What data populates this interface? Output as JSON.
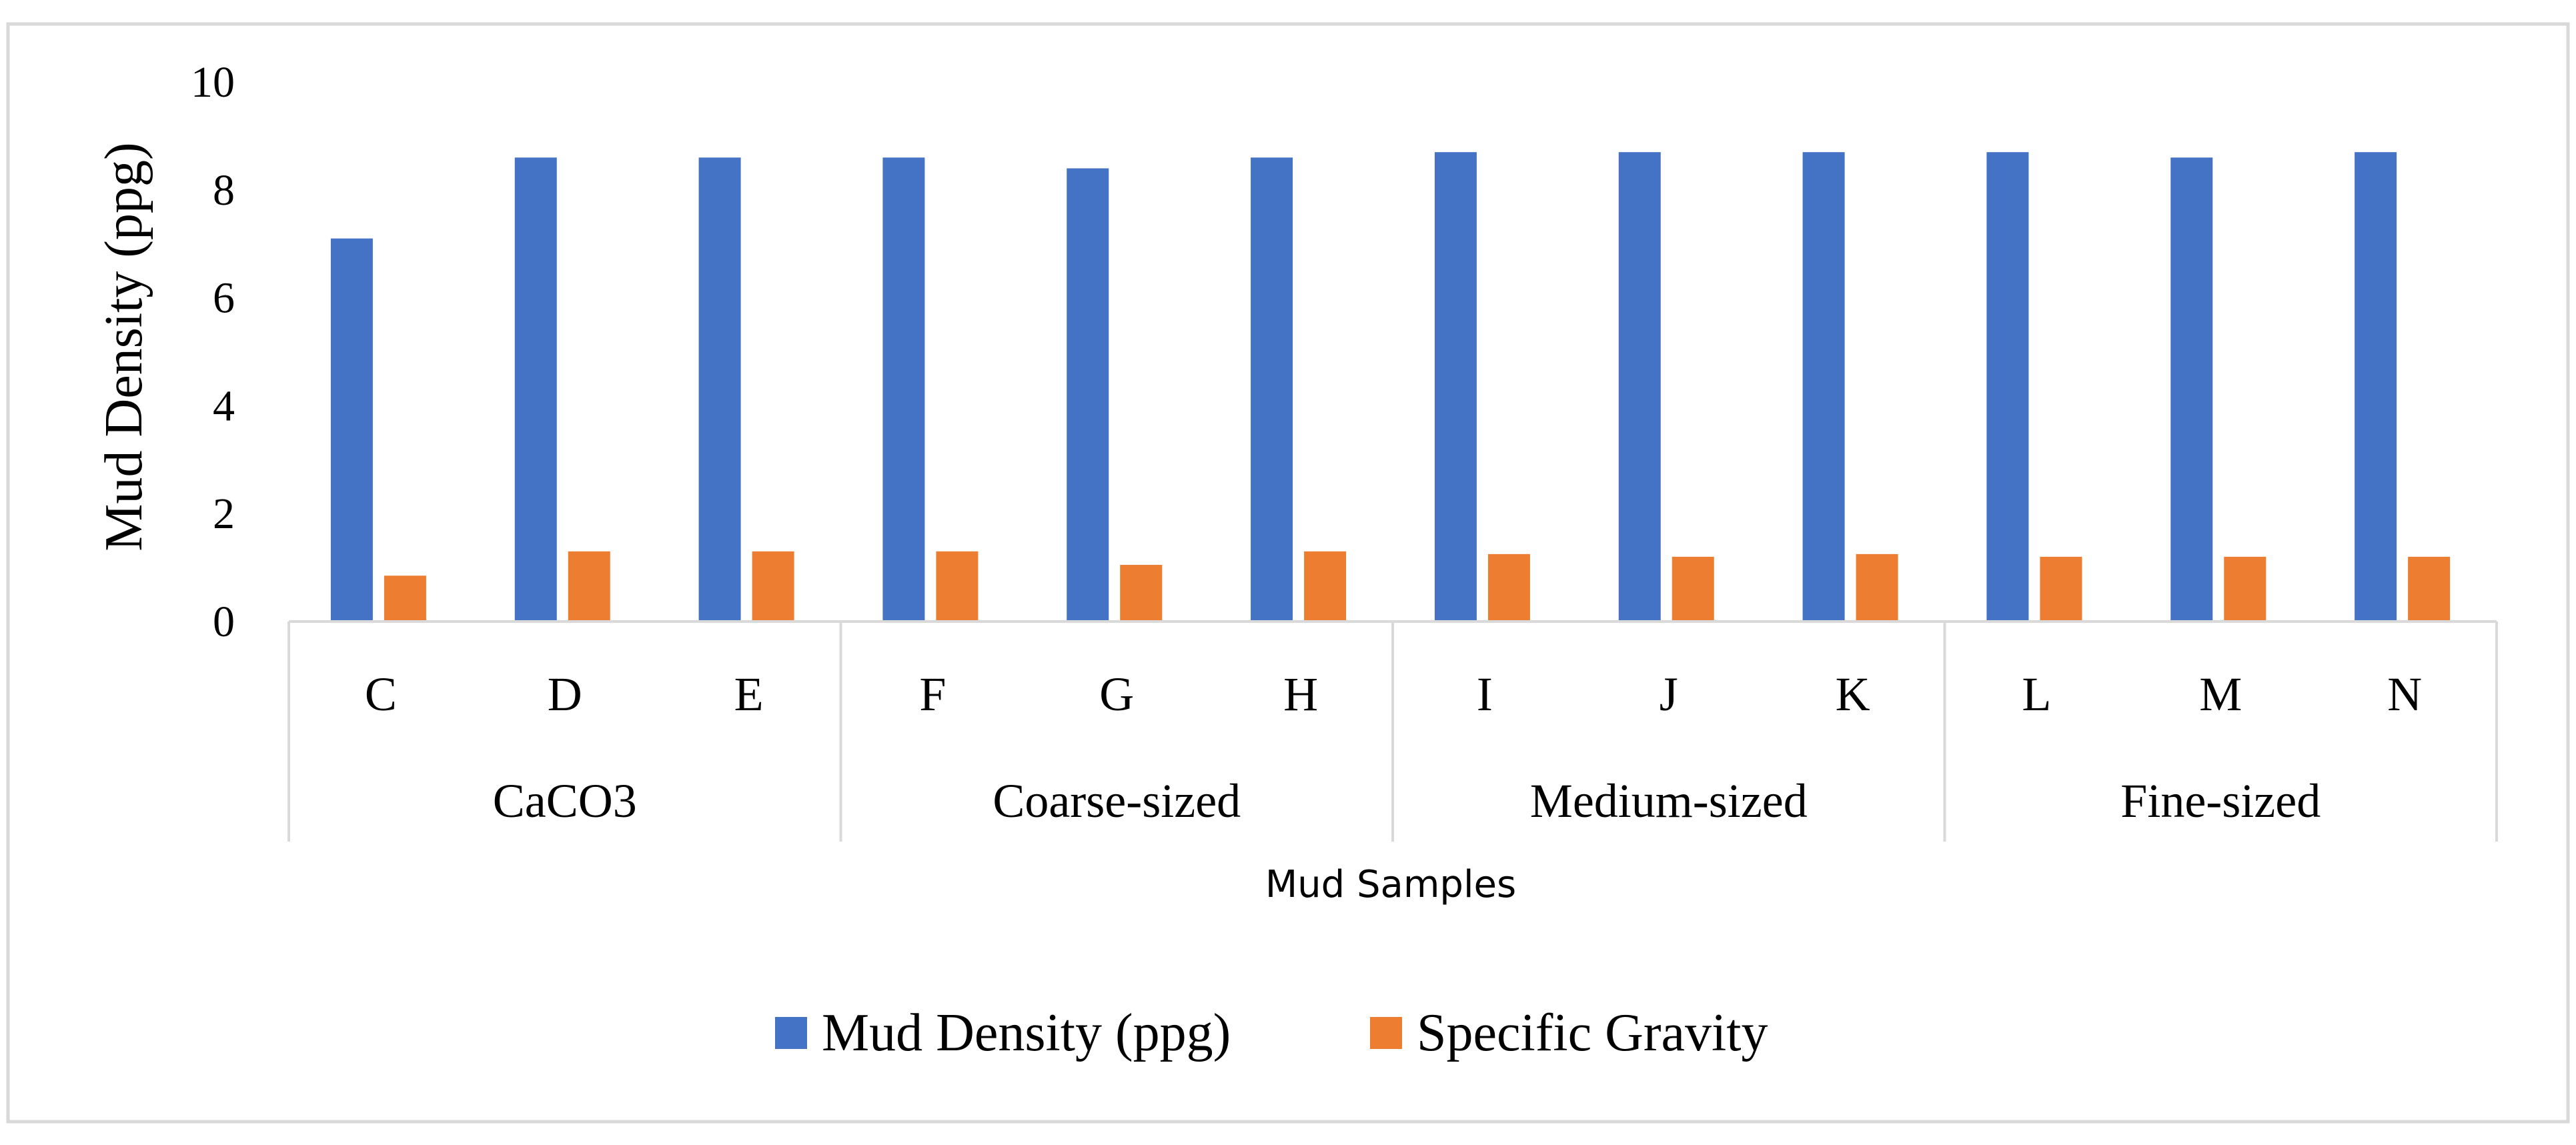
{
  "chart_data": {
    "type": "bar",
    "title": "",
    "xlabel": "Mud Samples",
    "ylabel": "Mud Density (ppg)",
    "ylim": [
      0,
      10
    ],
    "yticks": [
      0,
      2,
      4,
      6,
      8,
      10
    ],
    "grid": false,
    "legend_position": "bottom-center",
    "categories": [
      "C",
      "D",
      "E",
      "F",
      "G",
      "H",
      "I",
      "J",
      "K",
      "L",
      "M",
      "N"
    ],
    "groups": [
      {
        "label": "CaCO3",
        "categories": [
          "C",
          "D",
          "E"
        ]
      },
      {
        "label": "Coarse-sized",
        "categories": [
          "F",
          "G",
          "H"
        ]
      },
      {
        "label": "Medium-sized",
        "categories": [
          "I",
          "J",
          "K"
        ]
      },
      {
        "label": "Fine-sized",
        "categories": [
          "L",
          "M",
          "N"
        ]
      }
    ],
    "series": [
      {
        "name": "Mud Density (ppg)",
        "color": "#4472C4",
        "values": [
          7.1,
          8.6,
          8.6,
          8.6,
          8.4,
          8.6,
          8.7,
          8.7,
          8.7,
          8.7,
          8.6,
          8.7
        ]
      },
      {
        "name": "Specific Gravity",
        "color": "#ED7D31",
        "values": [
          0.85,
          1.3,
          1.3,
          1.3,
          1.05,
          1.3,
          1.25,
          1.2,
          1.25,
          1.2,
          1.2,
          1.2
        ]
      }
    ]
  }
}
